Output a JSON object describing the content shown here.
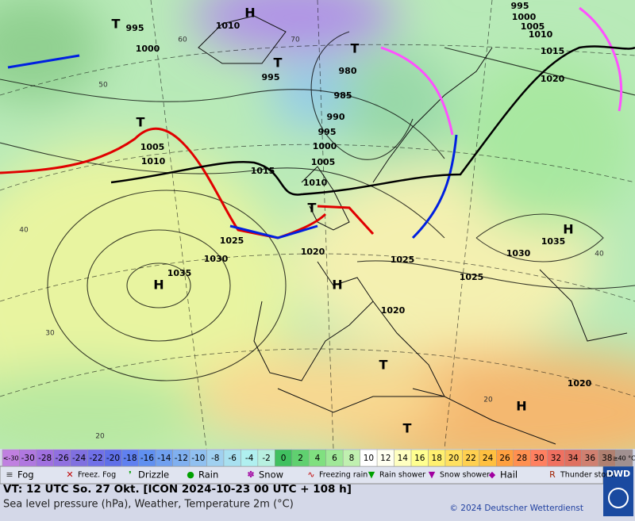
{
  "map": {
    "pressure_labels": [
      "995",
      "1000",
      "1010",
      "995",
      "980",
      "985",
      "990",
      "995",
      "1000",
      "1005",
      "1010",
      "1015",
      "1005",
      "1010",
      "1025",
      "1020",
      "1030",
      "1035",
      "1025",
      "1025",
      "1030",
      "1035",
      "1020",
      "1020",
      "995",
      "1000",
      "1005",
      "1010",
      "1015",
      "1020"
    ],
    "centers": [
      "H",
      "H",
      "H",
      "H",
      "H",
      "T",
      "T",
      "T",
      "T",
      "T",
      "T",
      "T"
    ],
    "grid_labels": [
      "60",
      "50",
      "40",
      "30",
      "20",
      "70",
      "40",
      "20"
    ]
  },
  "colorbar": [
    {
      "label": "<-30",
      "color": "#c080e0"
    },
    {
      "label": "-30",
      "color": "#b078e0"
    },
    {
      "label": "-28",
      "color": "#a070e0"
    },
    {
      "label": "-26",
      "color": "#9070e0"
    },
    {
      "label": "-24",
      "color": "#8070e0"
    },
    {
      "label": "-22",
      "color": "#7070e8"
    },
    {
      "label": "-20",
      "color": "#6070e8"
    },
    {
      "label": "-18",
      "color": "#6080f0"
    },
    {
      "label": "-16",
      "color": "#6090f0"
    },
    {
      "label": "-14",
      "color": "#70a0f0"
    },
    {
      "label": "-12",
      "color": "#80b0f0"
    },
    {
      "label": "-10",
      "color": "#90c0f0"
    },
    {
      "label": "-8",
      "color": "#a0d0f0"
    },
    {
      "label": "-6",
      "color": "#a8e0f0"
    },
    {
      "label": "-4",
      "color": "#b0f0f0"
    },
    {
      "label": "-2",
      "color": "#b8f0e0"
    },
    {
      "label": "0",
      "color": "#40c060"
    },
    {
      "label": "2",
      "color": "#60d070"
    },
    {
      "label": "4",
      "color": "#80e080"
    },
    {
      "label": "6",
      "color": "#a0e898"
    },
    {
      "label": "8",
      "color": "#c0f0b0"
    },
    {
      "label": "10",
      "color": "#ffffff"
    },
    {
      "label": "12",
      "color": "#fffff0"
    },
    {
      "label": "14",
      "color": "#ffffc0"
    },
    {
      "label": "16",
      "color": "#ffff90"
    },
    {
      "label": "18",
      "color": "#fff070"
    },
    {
      "label": "20",
      "color": "#ffe060"
    },
    {
      "label": "22",
      "color": "#ffd050"
    },
    {
      "label": "24",
      "color": "#ffc040"
    },
    {
      "label": "26",
      "color": "#ffa040"
    },
    {
      "label": "28",
      "color": "#ff9050"
    },
    {
      "label": "30",
      "color": "#ff8060"
    },
    {
      "label": "32",
      "color": "#f07060"
    },
    {
      "label": "34",
      "color": "#e07060"
    },
    {
      "label": "36",
      "color": "#d08070"
    },
    {
      "label": "38",
      "color": "#b08070"
    },
    {
      "label": "≥40 °C",
      "color": "#a09090"
    }
  ],
  "legend": [
    "Fog",
    "Freez. Fog",
    "Drizzle",
    "Rain",
    "Snow",
    "Freezing rain",
    "Rain shower",
    "Snow shower",
    "Hail",
    "Thunder storm"
  ],
  "footer": {
    "line1": "VT: 12 UTC So.  27 Okt. [ICON 2024-10-23  00 UTC + 108 h]",
    "line2": "Sea level pressure (hPa), Weather, Temperature 2m (°C)",
    "copyright": "© 2024 Deutscher Wetterdienst",
    "logo": "DWD"
  }
}
